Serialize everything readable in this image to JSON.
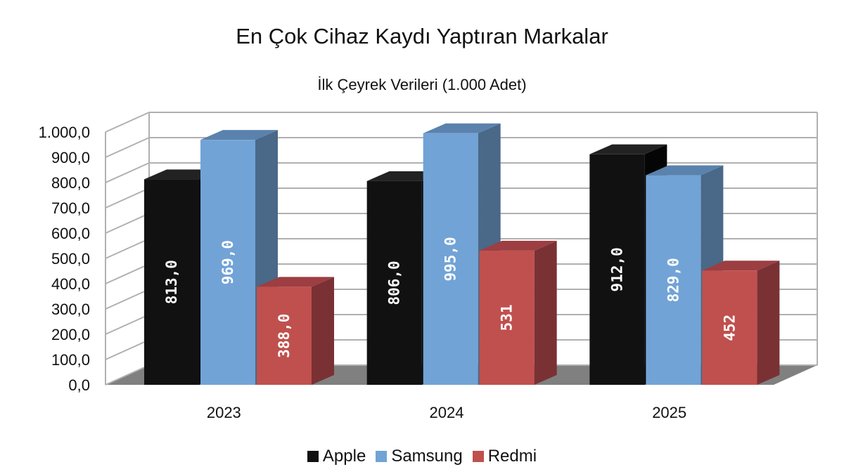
{
  "title": "En Çok Cihaz Kaydı Yaptıran Markalar",
  "subtitle": "İlk Çeyrek Verileri (1.000 Adet)",
  "chart_data": {
    "type": "bar",
    "title": "En Çok Cihaz Kaydı Yaptıran Markalar",
    "subtitle": "İlk Çeyrek Verileri (1.000 Adet)",
    "categories": [
      "2023",
      "2024",
      "2025"
    ],
    "series": [
      {
        "name": "Apple",
        "values": [
          813,
          806,
          912
        ],
        "labels": [
          "813,0",
          "806,0",
          "912,0"
        ],
        "color": "#111111",
        "side": "#050505",
        "top": "#222222"
      },
      {
        "name": "Samsung",
        "values": [
          969,
          995,
          829
        ],
        "labels": [
          "969,0",
          "995,0",
          "829,0"
        ],
        "color": "#72a3d6",
        "side": "#4a6888",
        "top": "#5a82ad"
      },
      {
        "name": "Redmi",
        "values": [
          388,
          531,
          452
        ],
        "labels": [
          "388,0",
          "531",
          "452"
        ],
        "color": "#c0504d",
        "side": "#7a3134",
        "top": "#9c3e42"
      }
    ],
    "yticks": [
      "0,0",
      "100,0",
      "200,0",
      "300,0",
      "400,0",
      "500,0",
      "600,0",
      "700,0",
      "800,0",
      "900,0",
      "1.000,0"
    ],
    "ylim": [
      0,
      1000
    ],
    "grid": true,
    "legend_position": "bottom",
    "style": "3d-column"
  },
  "legend": [
    {
      "label": "Apple",
      "color": "#111111"
    },
    {
      "label": "Samsung",
      "color": "#72a3d6"
    },
    {
      "label": "Redmi",
      "color": "#c0504d"
    }
  ]
}
